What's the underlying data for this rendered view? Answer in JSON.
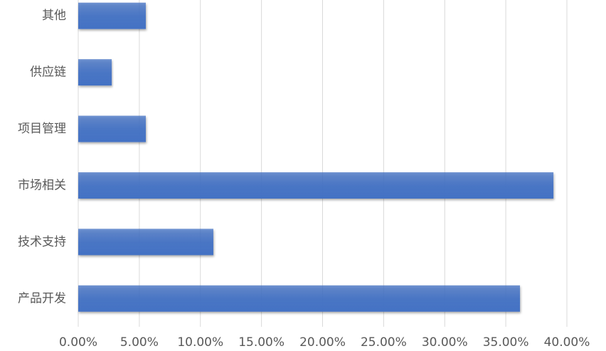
{
  "chart_data": {
    "type": "barh",
    "categories": [
      "其他",
      "供应链",
      "项目管理",
      "市场相关",
      "技术支持",
      "产品开发"
    ],
    "values": [
      5.53,
      2.74,
      5.53,
      38.9,
      11.06,
      36.16
    ],
    "color": "#4472c4",
    "xlim": [
      0,
      40
    ],
    "xticks": [
      {
        "value": 0,
        "label": "0.00%"
      },
      {
        "value": 5,
        "label": "5.00%"
      },
      {
        "value": 10,
        "label": "10.00%"
      },
      {
        "value": 15,
        "label": "15.00%"
      },
      {
        "value": 20,
        "label": "20.00%"
      },
      {
        "value": 25,
        "label": "25.00%"
      },
      {
        "value": 30,
        "label": "30.00%"
      },
      {
        "value": 35,
        "label": "35.00%"
      },
      {
        "value": 40,
        "label": "40.00%"
      }
    ],
    "grid": true
  }
}
